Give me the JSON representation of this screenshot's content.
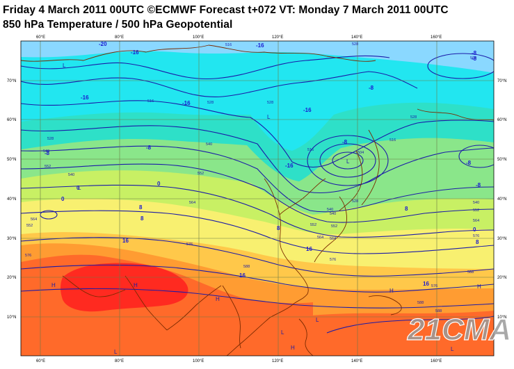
{
  "header": {
    "line1": "Friday 4 March 2011 00UTC ©ECMWF Forecast t+072 VT: Monday 7 March 2011 00UTC",
    "line2": "850 hPa Temperature / 500 hPa Geopotential"
  },
  "axes": {
    "lon_labels": [
      "60°E",
      "80°E",
      "100°E",
      "120°E",
      "140°E",
      "160°E"
    ],
    "lat_labels": [
      "70°N",
      "60°N",
      "50°N",
      "40°N",
      "30°N",
      "20°N",
      "10°N"
    ]
  },
  "colors": {
    "band_cold": "#8ad8ff",
    "band_cyan": "#22e6f0",
    "band_teal": "#2ee0c8",
    "band_green": "#8ae68a",
    "band_lime": "#c8f064",
    "band_yellow": "#f8f070",
    "band_lightorange": "#ffc84a",
    "band_orange": "#ff9c32",
    "band_hot": "#ff6a2a",
    "band_max": "#ff2a20",
    "contour": "#1a1aa8",
    "coast": "#7a2a00",
    "grid": "#6b7a45"
  },
  "temperature_labels": [
    "-20",
    "-16",
    "-16",
    "-16",
    "-16",
    "-8",
    "-8",
    "-8",
    "-8",
    "-8",
    "-16",
    "-8",
    "-8",
    "-16",
    "-8",
    "0",
    "0",
    "8",
    "8",
    "0",
    "8",
    "16",
    "8",
    "16",
    "16",
    "16",
    "0",
    "8"
  ],
  "contour_labels": [
    "516",
    "528",
    "504",
    "516",
    "528",
    "540",
    "552",
    "528",
    "540",
    "552",
    "564",
    "576",
    "528",
    "540",
    "552",
    "564",
    "576",
    "588",
    "516",
    "528",
    "540",
    "552",
    "564",
    "576",
    "588",
    "528",
    "540",
    "552",
    "564",
    "576",
    "588",
    "516",
    "504",
    "540",
    "552",
    "564",
    "576",
    "588"
  ],
  "pressure_centers": [
    "L",
    "L",
    "L",
    "L",
    "H",
    "H",
    "H",
    "H",
    "H",
    "L",
    "L",
    "L",
    "L",
    "H"
  ],
  "watermark": "21CMA"
}
